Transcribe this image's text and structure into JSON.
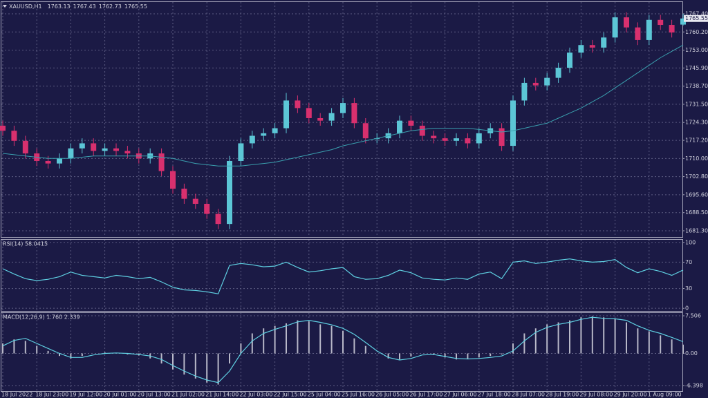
{
  "chart_data": [
    {
      "type": "candlestick",
      "title": "XAUUSD,H1",
      "categories": [
        "18 Jul 2022",
        null,
        null,
        "18 Jul 23:00",
        null,
        null,
        "19 Jul 12:00",
        null,
        null,
        "20 Jul 01:00",
        null,
        null,
        "20 Jul 13:00",
        null,
        null,
        "21 Jul 02:00",
        null,
        null,
        "21 Jul 14:00",
        null,
        null,
        "22 Jul 03:00",
        null,
        null,
        "22 Jul 15:00",
        null,
        null,
        "25 Jul 04:00",
        null,
        null,
        "25 Jul 16:00",
        null,
        null,
        "26 Jul 05:00",
        null,
        null,
        "26 Jul 17:00",
        null,
        null,
        "27 Jul 06:00",
        null,
        null,
        "27 Jul 18:00",
        null,
        null,
        "28 Jul 07:00",
        null,
        null,
        "28 Jul 19:00",
        null,
        null,
        "29 Jul 08:00",
        null,
        null,
        "29 Jul 20:00",
        null,
        null,
        "1 Aug 09:00",
        null,
        null,
        null
      ],
      "open": [
        1723,
        1721,
        1717,
        1712,
        1709,
        1708,
        1710,
        1714,
        1716,
        1713,
        1714,
        1713,
        1712,
        1710,
        1712,
        1705,
        1698,
        1694,
        1692,
        1688,
        1684,
        1709,
        1716,
        1719,
        1720,
        1722,
        1733,
        1730,
        1726,
        1725,
        1728,
        1732,
        1724,
        1718,
        1718,
        1720,
        1725,
        1723,
        1719,
        1718,
        1717,
        1718,
        1716,
        1720,
        1722,
        1715,
        1733,
        1740,
        1739,
        1742,
        1746,
        1752,
        1755,
        1754,
        1758,
        1766,
        1762,
        1757,
        1765,
        1763,
        1763.13
      ],
      "high": [
        1725,
        1723,
        1719,
        1714,
        1711,
        1712,
        1716,
        1718,
        1718,
        1716,
        1716,
        1715,
        1714,
        1714,
        1714,
        1707,
        1700,
        1696,
        1694,
        1690,
        1711,
        1718,
        1721,
        1722,
        1724,
        1736,
        1735,
        1732,
        1728,
        1730,
        1734,
        1734,
        1726,
        1720,
        1722,
        1727,
        1727,
        1725,
        1721,
        1720,
        1720,
        1720,
        1722,
        1724,
        1724,
        1735,
        1742,
        1742,
        1744,
        1748,
        1754,
        1757,
        1757,
        1760,
        1768,
        1768,
        1764,
        1767,
        1767,
        1765,
        1767.43
      ],
      "low": [
        1719,
        1715,
        1710,
        1707,
        1706,
        1706,
        1708,
        1712,
        1711,
        1711,
        1711,
        1710,
        1708,
        1708,
        1703,
        1696,
        1692,
        1690,
        1686,
        1682,
        1682,
        1707,
        1714,
        1717,
        1718,
        1720,
        1728,
        1724,
        1723,
        1723,
        1726,
        1722,
        1716,
        1716,
        1716,
        1718,
        1721,
        1717,
        1716,
        1715,
        1715,
        1714,
        1714,
        1718,
        1713,
        1713,
        1731,
        1737,
        1737,
        1740,
        1744,
        1750,
        1752,
        1752,
        1756,
        1760,
        1755,
        1755,
        1761,
        1758,
        1762.73
      ],
      "close": [
        1721,
        1717,
        1712,
        1709,
        1708,
        1710,
        1714,
        1716,
        1713,
        1714,
        1713,
        1712,
        1710,
        1712,
        1705,
        1698,
        1694,
        1692,
        1688,
        1684,
        1709,
        1716,
        1719,
        1720,
        1722,
        1733,
        1730,
        1726,
        1725,
        1728,
        1732,
        1724,
        1718,
        1718,
        1720,
        1725,
        1723,
        1719,
        1718,
        1717,
        1718,
        1716,
        1720,
        1722,
        1715,
        1733,
        1740,
        1739,
        1742,
        1746,
        1752,
        1755,
        1754,
        1758,
        1766,
        1762,
        1757,
        1765,
        1763,
        1760,
        1765.55
      ],
      "up_color": "#5cc6d6",
      "down_color": "#d8306e",
      "ma": {
        "color": "#3a9fae",
        "values": [
          1712,
          1711.5,
          1711,
          1710.5,
          1710,
          1710,
          1710,
          1710.5,
          1711,
          1711,
          1711,
          1711,
          1711,
          1711,
          1710.5,
          1710,
          1709,
          1708,
          1707.5,
          1707,
          1707,
          1707,
          1707.5,
          1708,
          1708.5,
          1709.5,
          1710.5,
          1711.5,
          1712.5,
          1713.5,
          1715,
          1716,
          1717,
          1718,
          1719,
          1720,
          1721,
          1721.5,
          1722,
          1722,
          1722,
          1722,
          1721.5,
          1721,
          1720.5,
          1721,
          1722,
          1723,
          1724,
          1726,
          1728,
          1730,
          1732.5,
          1735,
          1738,
          1741,
          1744,
          1747,
          1750,
          1752.5,
          1755
        ]
      },
      "ylim": [
        1678.83,
        1772.06
      ],
      "yticks": [
        {
          "value": 1681.3,
          "label": "1681.30"
        },
        {
          "value": 1688.5,
          "label": "1688.50"
        },
        {
          "value": 1695.6,
          "label": "1695.60"
        },
        {
          "value": 1702.8,
          "label": "1702.80"
        },
        {
          "value": 1710,
          "label": "1710.00"
        },
        {
          "value": 1717.2,
          "label": "1717.20"
        },
        {
          "value": 1724.3,
          "label": "1724.30"
        },
        {
          "value": 1731.5,
          "label": "1731.50"
        },
        {
          "value": 1738.7,
          "label": "1738.70"
        },
        {
          "value": 1745.9,
          "label": "1745.90"
        },
        {
          "value": 1753,
          "label": "1753.00"
        },
        {
          "value": 1760.2,
          "label": "1760.20"
        },
        {
          "value": 1767.4,
          "label": "1767.40"
        }
      ],
      "grid": true
    },
    {
      "type": "line",
      "title": "RSI(14) 58.0415",
      "color": "#5fd0e2",
      "values": [
        60,
        52,
        45,
        42,
        44,
        48,
        55,
        50,
        48,
        46,
        50,
        48,
        45,
        47,
        40,
        32,
        28,
        27,
        25,
        22,
        65,
        68,
        66,
        63,
        64,
        70,
        62,
        55,
        57,
        60,
        62,
        48,
        44,
        45,
        50,
        58,
        54,
        46,
        44,
        43,
        46,
        44,
        52,
        55,
        45,
        70,
        72,
        68,
        70,
        73,
        75,
        72,
        70,
        71,
        74,
        62,
        54,
        60,
        56,
        50,
        58.0415
      ],
      "ylim": [
        -4,
        104
      ],
      "yticks": [
        100,
        70,
        30,
        0
      ],
      "grid": true
    },
    {
      "type": "bar_line",
      "title": "MACD(12,26,9) 1.760 2.339",
      "series": [
        {
          "color": "#b8b8c8",
          "values": [
            2,
            2.8,
            2.5,
            1.5,
            0.5,
            -0.5,
            -1,
            -0.5,
            0,
            0.2,
            0,
            -0.2,
            -0.4,
            -1,
            -2,
            -3.2,
            -4.2,
            -5,
            -5.8,
            -6.2,
            -2,
            2,
            4,
            5,
            5.5,
            6,
            6.6,
            6.4,
            5.8,
            5.5,
            4.5,
            3,
            1.5,
            0,
            -1,
            -1.2,
            -0.6,
            0,
            -0.2,
            -0.8,
            -1.2,
            -1.1,
            -0.8,
            -0.5,
            -0.2,
            2,
            4,
            5,
            5.8,
            6.2,
            6.6,
            7.2,
            7.4,
            7.2,
            7,
            6.2,
            5,
            4.4,
            3.6,
            2.8,
            1.76
          ]
        },
        {
          "color": "#5fd0e2",
          "values": [
            1.5,
            2.6,
            3,
            2,
            1,
            0,
            -0.8,
            -0.8,
            -0.3,
            0,
            0.1,
            0,
            -0.2,
            -0.5,
            -1.2,
            -2.4,
            -3.5,
            -4.5,
            -5.3,
            -5.8,
            -3.5,
            0,
            2.5,
            4,
            4.8,
            5.5,
            6.3,
            6.6,
            6.2,
            5.7,
            5,
            3.8,
            2.2,
            0.5,
            -0.8,
            -1.3,
            -1,
            -0.3,
            -0.2,
            -0.6,
            -1,
            -1.1,
            -1,
            -0.8,
            -0.5,
            0.5,
            2.5,
            4.2,
            5.2,
            5.8,
            6.2,
            6.8,
            7.2,
            7,
            6.9,
            6.6,
            5.5,
            4.6,
            4,
            3.2,
            2.339
          ]
        }
      ],
      "ylim": [
        -7.5,
        8.06
      ],
      "yticks": [
        7.506,
        {
          "value": 0,
          "label": "0.00"
        },
        -6.398
      ],
      "grid": true
    }
  ]
}
